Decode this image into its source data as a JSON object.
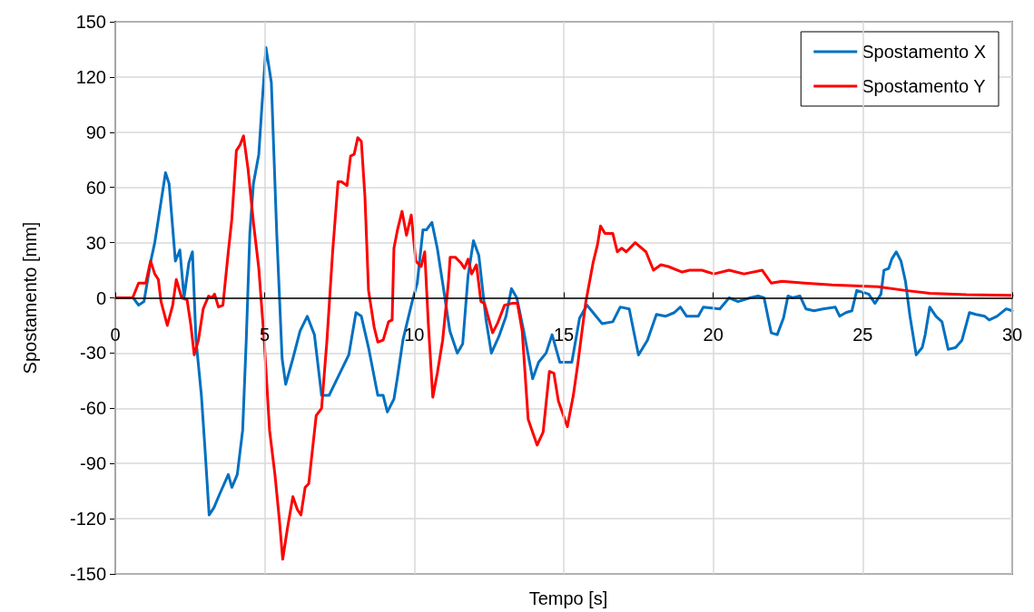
{
  "chart_data": {
    "type": "line",
    "xlabel": "Tempo [s]",
    "ylabel": "Spostamento [mm]",
    "xlim": [
      0,
      30
    ],
    "xticks": [
      0,
      5,
      10,
      15,
      20,
      25,
      30
    ],
    "ylim": [
      -150,
      150
    ],
    "yticks": [
      -150,
      -120,
      -90,
      -60,
      -30,
      0,
      30,
      60,
      90,
      120,
      150
    ],
    "grid": true,
    "legend": "top right",
    "marker": "none",
    "line_style": "solid",
    "series": [
      {
        "name": "Spostamento X",
        "color": "#0070c0",
        "x": [
          0,
          0.6,
          0.78,
          0.96,
          1.2,
          1.32,
          1.68,
          1.8,
          2.01,
          2.16,
          2.3,
          2.46,
          2.58,
          2.7,
          2.88,
          3.0,
          3.14,
          3.3,
          3.48,
          3.78,
          3.9,
          4.08,
          4.26,
          4.38,
          4.5,
          4.62,
          4.8,
          4.9,
          5.04,
          5.22,
          5.4,
          5.58,
          5.7,
          5.94,
          6.18,
          6.42,
          6.66,
          6.9,
          7.15,
          7.39,
          7.57,
          7.81,
          8.05,
          8.23,
          8.47,
          8.78,
          8.96,
          9.1,
          9.32,
          9.44,
          9.62,
          9.93,
          10.1,
          10.29,
          10.41,
          10.59,
          10.77,
          10.95,
          11.19,
          11.44,
          11.62,
          11.8,
          11.98,
          12.16,
          12.4,
          12.58,
          12.83,
          13.07,
          13.25,
          13.43,
          13.66,
          13.96,
          14.16,
          14.41,
          14.61,
          14.87,
          15.27,
          15.53,
          15.78,
          15.98,
          16.28,
          16.64,
          16.89,
          17.19,
          17.5,
          17.8,
          18.1,
          18.4,
          18.7,
          18.9,
          19.11,
          19.5,
          19.67,
          20.22,
          20.53,
          20.83,
          21.23,
          21.5,
          21.7,
          21.94,
          22.14,
          22.35,
          22.5,
          22.65,
          22.9,
          23.1,
          23.37,
          23.67,
          24.08,
          24.23,
          24.44,
          24.64,
          24.8,
          25,
          25.2,
          25.41,
          25.61,
          25.71,
          25.87,
          25.97,
          26.12,
          26.28,
          26.43,
          26.58,
          26.79,
          26.99,
          27.09,
          27.24,
          27.45,
          27.65,
          27.86,
          28.11,
          28.32,
          28.57,
          28.78,
          29.08,
          29.23,
          29.49,
          29.8,
          30
        ],
        "values": [
          0,
          0,
          -4,
          -2,
          21,
          30,
          68,
          62,
          20,
          26,
          0,
          19,
          25,
          -23,
          -53,
          -82,
          -118,
          -114,
          -107,
          -96,
          -103,
          -96,
          -72,
          -23,
          35,
          62,
          78,
          103,
          136,
          117,
          35,
          -33,
          -47,
          -33,
          -18,
          -10,
          -20,
          -53,
          -53,
          -45,
          -39,
          -31,
          -8,
          -10,
          -27,
          -53,
          -53,
          -62,
          -55,
          -43,
          -23,
          -2,
          8,
          37,
          37,
          41,
          27,
          8,
          -18,
          -30,
          -25,
          12,
          31,
          23,
          -12,
          -30,
          -21,
          -10,
          5,
          0,
          -18,
          -44,
          -35,
          -30,
          -20,
          -35,
          -35,
          -11,
          -4,
          -8,
          -14,
          -13,
          -5,
          -6,
          -31,
          -23,
          -9,
          -10,
          -8,
          -5,
          -10,
          -10,
          -5,
          -6,
          0,
          -2,
          0,
          1,
          0,
          -19,
          -20,
          -11,
          1,
          0,
          1,
          -6,
          -7,
          -6,
          -5,
          -10,
          -8,
          -7,
          4,
          3,
          2,
          -3,
          2,
          15,
          16,
          21,
          25,
          20,
          9,
          -10,
          -31,
          -27,
          -20,
          -5,
          -10,
          -13,
          -28,
          -27,
          -23,
          -8,
          -9,
          -10,
          -12,
          -10,
          -6,
          -7
        ]
      },
      {
        "name": "Spostamento Y",
        "color": "#ff0000",
        "x": [
          0,
          0.58,
          0.78,
          1.02,
          1.18,
          1.32,
          1.44,
          1.53,
          1.74,
          1.92,
          2.04,
          2.22,
          2.4,
          2.52,
          2.64,
          2.78,
          2.94,
          3.12,
          3.24,
          3.32,
          3.45,
          3.6,
          3.78,
          3.9,
          4.05,
          4.17,
          4.29,
          4.44,
          4.62,
          4.8,
          4.98,
          5.16,
          5.34,
          5.49,
          5.6,
          5.76,
          5.94,
          6.09,
          6.21,
          6.35,
          6.47,
          6.72,
          6.9,
          7.08,
          7.27,
          7.45,
          7.57,
          7.75,
          7.87,
          7.99,
          8.11,
          8.23,
          8.35,
          8.47,
          8.66,
          8.78,
          8.96,
          9.14,
          9.26,
          9.32,
          9.44,
          9.59,
          9.74,
          9.9,
          10.05,
          10.23,
          10.35,
          10.47,
          10.62,
          10.77,
          10.95,
          11.14,
          11.2,
          11.38,
          11.56,
          11.68,
          11.8,
          11.92,
          12.08,
          12.23,
          12.35,
          12.62,
          12.78,
          13.02,
          13.26,
          13.45,
          13.61,
          13.81,
          14.11,
          14.31,
          14.52,
          14.67,
          14.82,
          15.12,
          15.32,
          15.47,
          15.73,
          15.98,
          16.13,
          16.23,
          16.38,
          16.64,
          16.79,
          16.94,
          17.09,
          17.39,
          17.75,
          18.0,
          18.25,
          18.5,
          18.96,
          19.21,
          19.62,
          20.02,
          20.53,
          21.03,
          21.64,
          21.94,
          22.3,
          23.06,
          23.98,
          25.51,
          26.43,
          27.24,
          28.47,
          30
        ],
        "values": [
          0,
          0,
          8,
          8,
          20,
          13,
          10,
          -2,
          -15,
          -4,
          10,
          0,
          -1,
          -14,
          -31,
          -23,
          -6,
          1,
          0,
          2,
          -5,
          -4,
          25,
          43,
          80,
          83,
          88,
          70,
          41,
          16,
          -23,
          -72,
          -96,
          -121,
          -142,
          -125,
          -108,
          -115,
          -118,
          -103,
          -101,
          -64,
          -60,
          -23,
          25,
          63,
          63,
          61,
          77,
          78,
          87,
          85,
          55,
          4,
          -16,
          -24,
          -23,
          -13,
          -12,
          27,
          37,
          47,
          34,
          45,
          20,
          17,
          25,
          -14,
          -54,
          -41,
          -23,
          8,
          22,
          22,
          19,
          16,
          21,
          13,
          18,
          -2,
          -3,
          -19,
          -14,
          -4,
          -3,
          -3,
          -18,
          -66,
          -80,
          -73,
          -40,
          -41,
          -56,
          -70,
          -53,
          -36,
          -3,
          19,
          29,
          39,
          35,
          35,
          25,
          27,
          25,
          30,
          25,
          15,
          18,
          17,
          14,
          15,
          15,
          13,
          15,
          13,
          15,
          8,
          9,
          8,
          7,
          6,
          4,
          2.5,
          1.7,
          1.3
        ]
      }
    ]
  }
}
